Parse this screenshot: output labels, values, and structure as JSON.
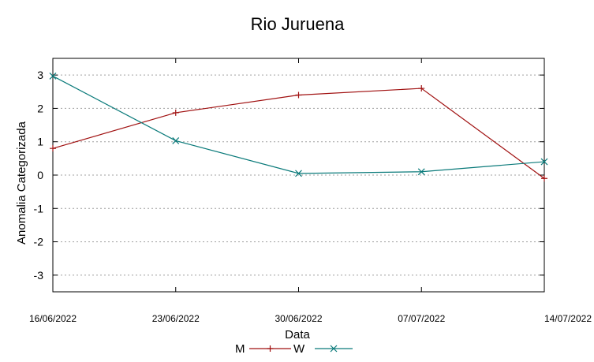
{
  "chart_data": {
    "type": "line",
    "title": "Rio Juruena",
    "xlabel": "Data",
    "ylabel": "Anomalia Categorizada",
    "categories": [
      "16/06/2022",
      "23/06/2022",
      "30/06/2022",
      "07/07/2022",
      "14/07/2022"
    ],
    "y_ticks": [
      "3",
      "2",
      "1",
      "0",
      "-1",
      "-2",
      "-3"
    ],
    "ylim": [
      -3.5,
      3.5
    ],
    "grid": true,
    "legend_position": "bottom-center",
    "series": [
      {
        "name": "M",
        "marker": "plus",
        "color": "#a01010",
        "values": [
          0.8,
          1.87,
          2.4,
          2.6,
          -0.1
        ]
      },
      {
        "name": "W",
        "marker": "cross",
        "color": "#0a7a7a",
        "values": [
          2.97,
          1.03,
          0.05,
          0.1,
          0.4
        ]
      }
    ]
  }
}
